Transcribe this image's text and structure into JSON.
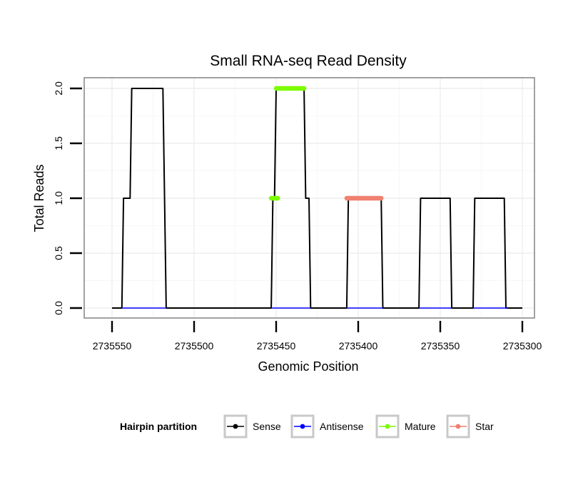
{
  "chart_data": {
    "type": "line",
    "title": "Small RNA-seq Read Density",
    "xlabel": "Genomic Position",
    "ylabel": "Total Reads",
    "xlim": [
      2735555,
      2735295
    ],
    "ylim": [
      -0.08,
      2.1
    ],
    "x_reversed": true,
    "x_ticks": [
      2735550,
      2735500,
      2735450,
      2735400,
      2735350,
      2735300
    ],
    "x_tick_labels": [
      "2735550",
      "2735500",
      "2735450",
      "2735400",
      "2735350",
      "2735300"
    ],
    "y_ticks": [
      0.0,
      0.5,
      1.0,
      1.5,
      2.0
    ],
    "y_tick_labels": [
      "0.0",
      "0.5",
      "1.0",
      "1.5",
      "2.0"
    ],
    "grid": true,
    "legend": {
      "title": "Hairpin partition",
      "position": "bottom",
      "entries": [
        "Sense",
        "Antisense",
        "Mature",
        "Star"
      ]
    },
    "series": [
      {
        "name": "Sense",
        "color": "#000000",
        "style": "line",
        "points": [
          [
            2735550,
            0
          ],
          [
            2735544,
            0
          ],
          [
            2735543,
            1
          ],
          [
            2735539,
            1
          ],
          [
            2735538,
            2
          ],
          [
            2735519,
            2
          ],
          [
            2735517,
            0
          ],
          [
            2735453,
            0
          ],
          [
            2735452,
            1
          ],
          [
            2735451,
            1
          ],
          [
            2735450,
            2
          ],
          [
            2735433,
            2
          ],
          [
            2735432,
            1
          ],
          [
            2735430,
            1
          ],
          [
            2735429,
            0
          ],
          [
            2735407,
            0
          ],
          [
            2735406,
            1
          ],
          [
            2735386,
            1
          ],
          [
            2735385,
            0
          ],
          [
            2735363,
            0
          ],
          [
            2735362,
            1
          ],
          [
            2735344,
            1
          ],
          [
            2735343,
            0
          ],
          [
            2735330,
            0
          ],
          [
            2735329,
            1
          ],
          [
            2735311,
            1
          ],
          [
            2735310,
            0
          ],
          [
            2735300,
            0
          ]
        ]
      },
      {
        "name": "Antisense",
        "color": "#0000ff",
        "style": "line",
        "points": [
          [
            2735544,
            0
          ],
          [
            2735517,
            0
          ],
          [
            2735453,
            0
          ],
          [
            2735429,
            0
          ],
          [
            2735407,
            0
          ],
          [
            2735385,
            0
          ],
          [
            2735363,
            0
          ],
          [
            2735343,
            0
          ],
          [
            2735330,
            0
          ],
          [
            2735309,
            0
          ]
        ]
      },
      {
        "name": "Mature",
        "color": "#7cfc00",
        "style": "thick",
        "segments": [
          [
            [
              2735453,
              1
            ],
            [
              2735449,
              1
            ]
          ],
          [
            [
              2735450,
              2
            ],
            [
              2735433,
              2
            ]
          ]
        ]
      },
      {
        "name": "Star",
        "color": "#f08070",
        "style": "thick",
        "segments": [
          [
            [
              2735407,
              1
            ],
            [
              2735386,
              1
            ]
          ]
        ]
      }
    ]
  }
}
